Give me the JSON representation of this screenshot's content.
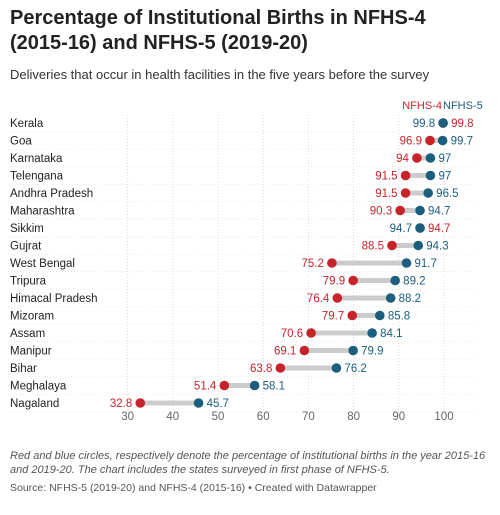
{
  "title": "Percentage of Institutional Births in NFHS-4 (2015-16) and NFHS-5 (2019-20)",
  "subtitle": "Deliveries that occur in health facilities in the five years before the survey",
  "note": "Red and blue circles, respectively denote the percentage of institutional births in the year 2015-16 and 2019-20. The chart includes the states surveyed in first phase of NFHS-5.",
  "source": "Source: NFHS-5 (2019-20) and NFHS-4 (2015-16) • Created with Datawrapper",
  "colors": {
    "nfhs4": "#c7232b",
    "nfhs5": "#1b5e7d",
    "connector": "#cccccc",
    "grid": "#d9d9d9",
    "tick": "#666666"
  },
  "chart_data": {
    "type": "dumbbell",
    "categories": [
      "Kerala",
      "Goa",
      "Karnataka",
      "Telengana",
      "Andhra Pradesh",
      "Maharashtra",
      "Sikkim",
      "Gujrat",
      "West Bengal",
      "Tripura",
      "Himacal Pradesh",
      "Mizoram",
      "Assam",
      "Manipur",
      "Bihar",
      "Meghalaya",
      "Nagaland"
    ],
    "series": [
      {
        "name": "NFHS-4",
        "values": [
          99.8,
          96.9,
          94,
          91.5,
          91.5,
          90.3,
          94.7,
          88.5,
          75.2,
          79.9,
          76.4,
          79.7,
          70.6,
          69.1,
          63.8,
          51.4,
          32.8
        ]
      },
      {
        "name": "NFHS-5",
        "values": [
          99.8,
          99.7,
          97,
          97,
          96.5,
          94.7,
          94.7,
          94.3,
          91.7,
          89.2,
          88.2,
          85.8,
          84.1,
          79.9,
          76.2,
          58.1,
          45.7
        ]
      }
    ],
    "xlim": [
      25,
      100
    ],
    "xticks": [
      30,
      40,
      50,
      60,
      70,
      80,
      90,
      100
    ],
    "grid": true,
    "legend": "top-right"
  }
}
